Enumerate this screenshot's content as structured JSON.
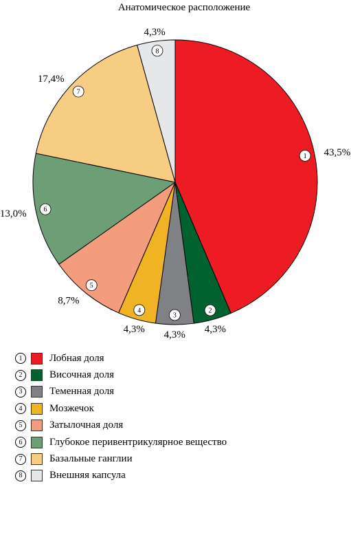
{
  "chart_data": {
    "type": "pie",
    "title": "Анатомическое расположение",
    "slices": [
      {
        "num": "1",
        "label": "Лобная доля",
        "value": 43.5,
        "value_label": "43,5%",
        "color": "#ed1c24"
      },
      {
        "num": "2",
        "label": "Височная доля",
        "value": 4.3,
        "value_label": "4,3%",
        "color": "#00622f"
      },
      {
        "num": "3",
        "label": "Теменная доля",
        "value": 4.3,
        "value_label": "4,3%",
        "color": "#808184"
      },
      {
        "num": "4",
        "label": "Мозжечок",
        "value": 4.3,
        "value_label": "4,3%",
        "color": "#f0b323"
      },
      {
        "num": "5",
        "label": "Затылочная доля",
        "value": 8.7,
        "value_label": "8,7%",
        "color": "#f49c7e"
      },
      {
        "num": "6",
        "label": "Глубокое перивентрикулярное вещество",
        "value": 13.0,
        "value_label": "13,0%",
        "color": "#6e9e76"
      },
      {
        "num": "7",
        "label": "Базальные ганглии",
        "value": 17.4,
        "value_label": "17,4%",
        "color": "#f7cd83"
      },
      {
        "num": "8",
        "label": "Внешняя капсула",
        "value": 4.3,
        "value_label": "4,3%",
        "color": "#e6e7e8"
      }
    ],
    "start_angle_deg": 0,
    "direction": "clockwise",
    "legend_position": "bottom-left"
  }
}
